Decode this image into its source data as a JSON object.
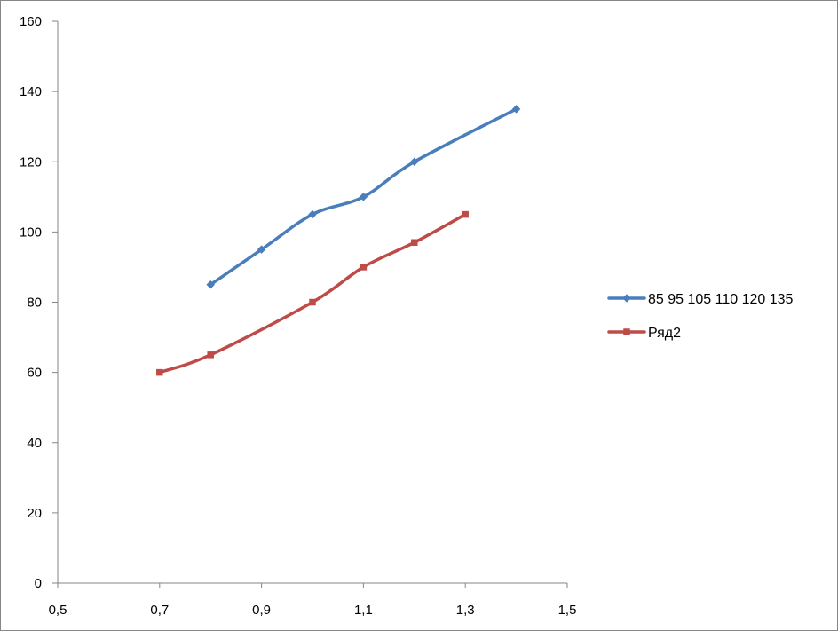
{
  "chart_data": {
    "type": "scatter",
    "title": "",
    "xlabel": "",
    "ylabel": "",
    "xlim": [
      0.5,
      1.5
    ],
    "ylim": [
      0,
      160
    ],
    "x_ticks": [
      "0,5",
      "0,7",
      "0,9",
      "1,1",
      "1,3",
      "1,5"
    ],
    "x_tick_values": [
      0.5,
      0.7,
      0.9,
      1.1,
      1.3,
      1.5
    ],
    "y_ticks": [
      "0",
      "20",
      "40",
      "60",
      "80",
      "100",
      "120",
      "140",
      "160"
    ],
    "y_tick_values": [
      0,
      20,
      40,
      60,
      80,
      100,
      120,
      140,
      160
    ],
    "grid": false,
    "smoothed_lines": true,
    "legend_position": "right",
    "series": [
      {
        "name": "85 95 105 110 120 135",
        "color": "#4A7EBB",
        "marker": "diamond",
        "x": [
          0.8,
          0.9,
          1.0,
          1.1,
          1.2,
          1.4
        ],
        "y": [
          85,
          95,
          105,
          110,
          120,
          135
        ]
      },
      {
        "name": "Ряд2",
        "color": "#BE4B48",
        "marker": "square",
        "x": [
          0.7,
          0.8,
          1.0,
          1.1,
          1.2,
          1.3
        ],
        "y": [
          60,
          65,
          80,
          90,
          97,
          105
        ]
      }
    ]
  }
}
